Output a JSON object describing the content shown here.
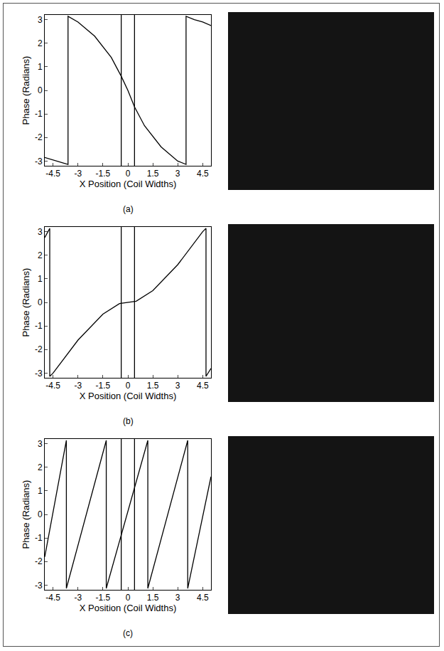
{
  "chart_data": [
    {
      "type": "line",
      "panel_label": "(a)",
      "x_label": "X Position (Coil Widths)",
      "y_label": "Phase (Radians)",
      "x": [
        -5,
        -4.5,
        -4,
        -3.6,
        -3.6,
        -3,
        -2,
        -1,
        -0.4,
        0,
        0.4,
        1,
        2,
        3,
        3.5,
        3.5,
        4,
        4.5,
        5
      ],
      "series": [
        {
          "color": "#000000",
          "values": [
            -2.85,
            -2.95,
            -3.05,
            -3.14,
            3.14,
            2.9,
            2.3,
            1.4,
            0.6,
            0,
            -0.7,
            -1.5,
            -2.4,
            -3.0,
            -3.14,
            3.14,
            3.0,
            2.9,
            2.75
          ]
        }
      ],
      "vertical_lines": [
        -0.4,
        0.4
      ],
      "xlim": [
        -5,
        5
      ],
      "ylim": [
        -3.2,
        3.2
      ],
      "xticks": [
        -4.5,
        -3,
        -1.5,
        0,
        1.5,
        3,
        4.5
      ],
      "yticks": [
        -3,
        -2,
        -1,
        0,
        1,
        2,
        3
      ],
      "grid": false
    },
    {
      "type": "line",
      "panel_label": "(b)",
      "x_label": "X Position (Coil Widths)",
      "y_label": "Phase (Radians)",
      "x": [
        -5,
        -4.7,
        -4.7,
        -4.5,
        -3,
        -1.5,
        -0.5,
        0,
        0.5,
        1.5,
        3,
        4.5,
        4.7,
        4.7,
        5
      ],
      "series": [
        {
          "color": "#000000",
          "values": [
            2.75,
            3.14,
            -3.14,
            -3.0,
            -1.6,
            -0.5,
            -0.05,
            0,
            0.05,
            0.5,
            1.6,
            3.0,
            3.14,
            -3.14,
            -2.8
          ]
        }
      ],
      "vertical_lines": [
        -0.4,
        0.4
      ],
      "xlim": [
        -5,
        5
      ],
      "ylim": [
        -3.2,
        3.2
      ],
      "xticks": [
        -4.5,
        -3,
        -1.5,
        0,
        1.5,
        3,
        4.5
      ],
      "yticks": [
        -3,
        -2,
        -1,
        0,
        1,
        2,
        3
      ],
      "grid": false
    },
    {
      "type": "line",
      "panel_label": "(c)",
      "x_label": "X Position (Coil Widths)",
      "y_label": "Phase (Radians)",
      "x": [
        -5,
        -3.7,
        -3.7,
        -1.3,
        -1.3,
        1.2,
        1.2,
        3.6,
        3.6,
        5
      ],
      "series": [
        {
          "color": "#000000",
          "values": [
            -1.8,
            3.14,
            -3.14,
            3.14,
            -3.14,
            3.14,
            -3.14,
            3.14,
            -3.14,
            1.6
          ]
        }
      ],
      "vertical_lines": [
        -0.4,
        0.4
      ],
      "xlim": [
        -5,
        5
      ],
      "ylim": [
        -3.2,
        3.2
      ],
      "xticks": [
        -4.5,
        -3,
        -1.5,
        0,
        1.5,
        3,
        4.5
      ],
      "yticks": [
        -3,
        -2,
        -1,
        0,
        1,
        2,
        3
      ],
      "grid": false
    }
  ]
}
